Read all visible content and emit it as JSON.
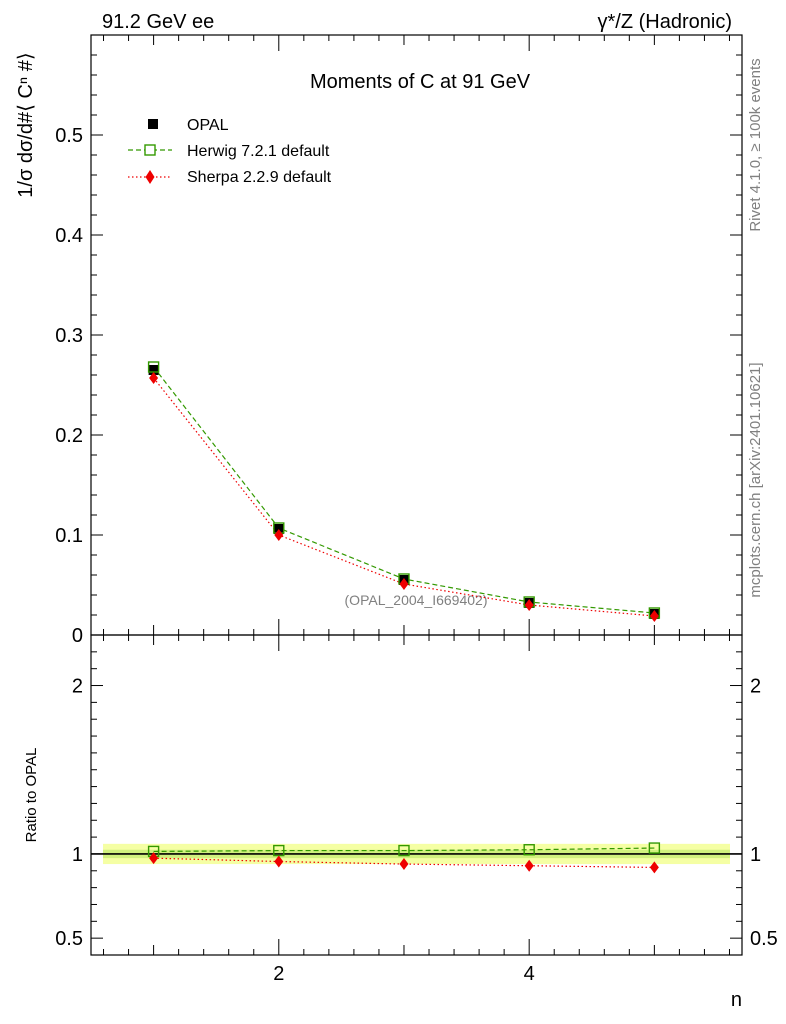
{
  "header": {
    "left": "91.2 GeV ee",
    "right": "γ*/Z (Hadronic)"
  },
  "side_labels": {
    "rivet": "Rivet 4.1.0, ≥ 100k events",
    "mcplots": "mcplots.cern.ch [arXiv:2401.10621]"
  },
  "chart_data": {
    "type": "line",
    "title": "Moments of C at 91 GeV",
    "watermark": "(OPAL_2004_I669402)",
    "xlabel": "n",
    "ylabel": "1/σ  dσ/d#⟨ Cⁿ #⟩",
    "ratio_ylabel": "Ratio to OPAL",
    "xlim": [
      0.5,
      5.7
    ],
    "ylim": [
      0,
      0.6
    ],
    "ratio_ylim": [
      0.4,
      2.3
    ],
    "x_ticks": [
      "2",
      "4"
    ],
    "y_ticks": [
      "0",
      "0.1",
      "0.2",
      "0.3",
      "0.4",
      "0.5"
    ],
    "ratio_y_ticks": [
      "0.5",
      "1",
      "2"
    ],
    "x": [
      1,
      2,
      3,
      4,
      5
    ],
    "series": [
      {
        "name": "OPAL",
        "style": "data",
        "color": "#000000",
        "values": [
          0.265,
          0.106,
          0.055,
          0.032,
          0.021
        ]
      },
      {
        "name": "Herwig 7.2.1 default",
        "style": "dashed-square",
        "color": "#339900",
        "values": [
          0.268,
          0.107,
          0.056,
          0.033,
          0.022
        ],
        "ratio": [
          1.015,
          1.02,
          1.02,
          1.025,
          1.035
        ]
      },
      {
        "name": "Sherpa 2.2.9 default",
        "style": "dotted-diamond",
        "color": "#ee0000",
        "values": [
          0.257,
          0.1,
          0.051,
          0.03,
          0.019
        ],
        "ratio": [
          0.975,
          0.955,
          0.94,
          0.93,
          0.92
        ]
      }
    ]
  }
}
